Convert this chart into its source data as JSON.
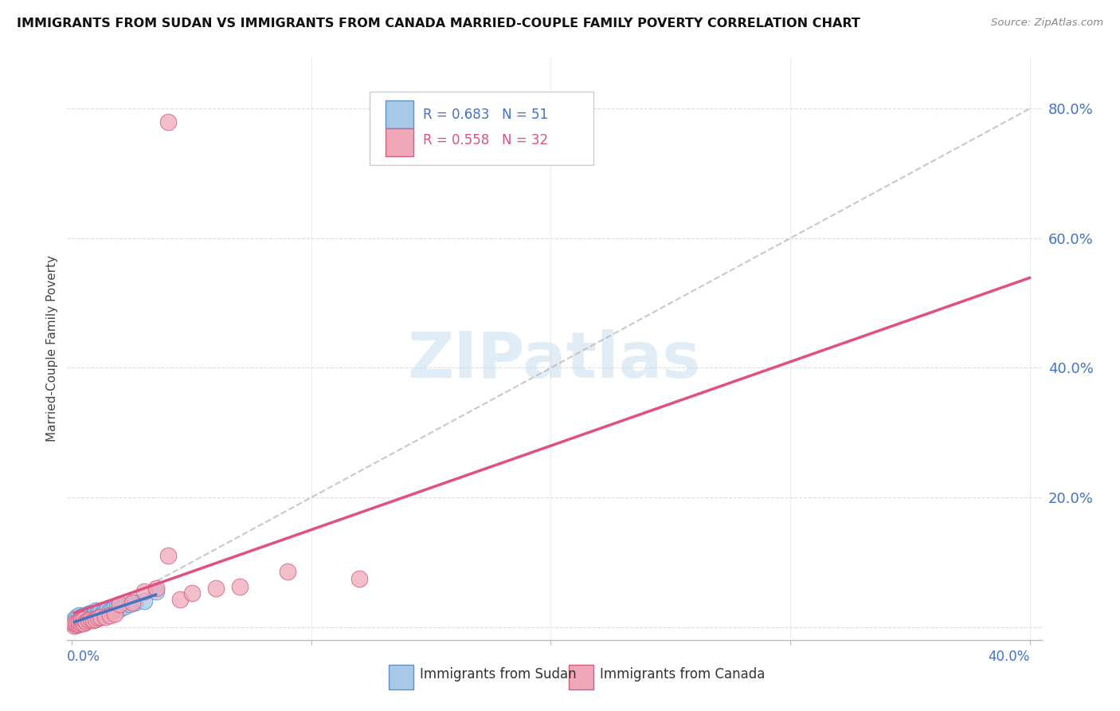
{
  "title": "IMMIGRANTS FROM SUDAN VS IMMIGRANTS FROM CANADA MARRIED-COUPLE FAMILY POVERTY CORRELATION CHART",
  "source": "Source: ZipAtlas.com",
  "ylabel": "Married-Couple Family Poverty",
  "legend_sudan": "Immigrants from Sudan",
  "legend_canada": "Immigrants from Canada",
  "R_sudan": 0.683,
  "N_sudan": 51,
  "R_canada": 0.558,
  "N_canada": 32,
  "color_sudan_fill": "#A8C8E8",
  "color_sudan_edge": "#6090C8",
  "color_canada_fill": "#F0A8B8",
  "color_canada_edge": "#D06080",
  "color_sudan_line": "#4472C4",
  "color_canada_line": "#E05080",
  "color_dashed_line": "#BBBBBB",
  "color_grid": "#DDDDDD",
  "sudan_x": [
    0.001,
    0.001,
    0.001,
    0.002,
    0.002,
    0.002,
    0.002,
    0.003,
    0.003,
    0.003,
    0.003,
    0.003,
    0.004,
    0.004,
    0.004,
    0.004,
    0.005,
    0.005,
    0.005,
    0.005,
    0.006,
    0.006,
    0.006,
    0.007,
    0.007,
    0.007,
    0.008,
    0.008,
    0.008,
    0.009,
    0.009,
    0.01,
    0.01,
    0.01,
    0.011,
    0.011,
    0.012,
    0.012,
    0.013,
    0.014,
    0.015,
    0.016,
    0.017,
    0.018,
    0.019,
    0.02,
    0.022,
    0.024,
    0.026,
    0.03,
    0.035
  ],
  "sudan_y": [
    0.005,
    0.008,
    0.012,
    0.005,
    0.008,
    0.01,
    0.015,
    0.005,
    0.007,
    0.01,
    0.012,
    0.018,
    0.007,
    0.01,
    0.012,
    0.016,
    0.008,
    0.01,
    0.014,
    0.018,
    0.01,
    0.012,
    0.016,
    0.012,
    0.015,
    0.02,
    0.012,
    0.015,
    0.022,
    0.014,
    0.018,
    0.015,
    0.018,
    0.025,
    0.016,
    0.022,
    0.018,
    0.025,
    0.022,
    0.025,
    0.028,
    0.025,
    0.028,
    0.03,
    0.032,
    0.028,
    0.032,
    0.035,
    0.038,
    0.04,
    0.055
  ],
  "canada_x": [
    0.001,
    0.001,
    0.002,
    0.002,
    0.003,
    0.003,
    0.004,
    0.004,
    0.005,
    0.005,
    0.006,
    0.007,
    0.008,
    0.009,
    0.01,
    0.011,
    0.012,
    0.014,
    0.016,
    0.018,
    0.02,
    0.025,
    0.03,
    0.035,
    0.04,
    0.045,
    0.05,
    0.06,
    0.07,
    0.09,
    0.12,
    0.04
  ],
  "canada_y": [
    0.002,
    0.005,
    0.003,
    0.006,
    0.004,
    0.008,
    0.005,
    0.01,
    0.006,
    0.012,
    0.008,
    0.01,
    0.012,
    0.01,
    0.012,
    0.014,
    0.015,
    0.016,
    0.018,
    0.02,
    0.035,
    0.038,
    0.055,
    0.06,
    0.11,
    0.042,
    0.052,
    0.06,
    0.062,
    0.085,
    0.075,
    0.78
  ],
  "sudan_line_x": [
    0.0,
    0.035
  ],
  "sudan_line_y": [
    0.003,
    0.055
  ],
  "canada_line_x": [
    0.0,
    0.4
  ],
  "canada_line_y": [
    -0.01,
    0.45
  ],
  "dashed_line_x": [
    0.0,
    0.4
  ],
  "dashed_line_y": [
    0.0,
    0.8
  ],
  "xlim": [
    -0.002,
    0.405
  ],
  "ylim": [
    -0.02,
    0.88
  ],
  "xtick_positions": [
    0.0,
    0.1,
    0.2,
    0.3,
    0.4
  ],
  "ytick_positions": [
    0.0,
    0.2,
    0.4,
    0.6,
    0.8
  ],
  "ytick_labels": [
    "",
    "20.0%",
    "40.0%",
    "60.0%",
    "80.0%"
  ],
  "background_color": "#FFFFFF",
  "watermark_text": "ZIPatlas",
  "watermark_color": "#C8DFF0"
}
